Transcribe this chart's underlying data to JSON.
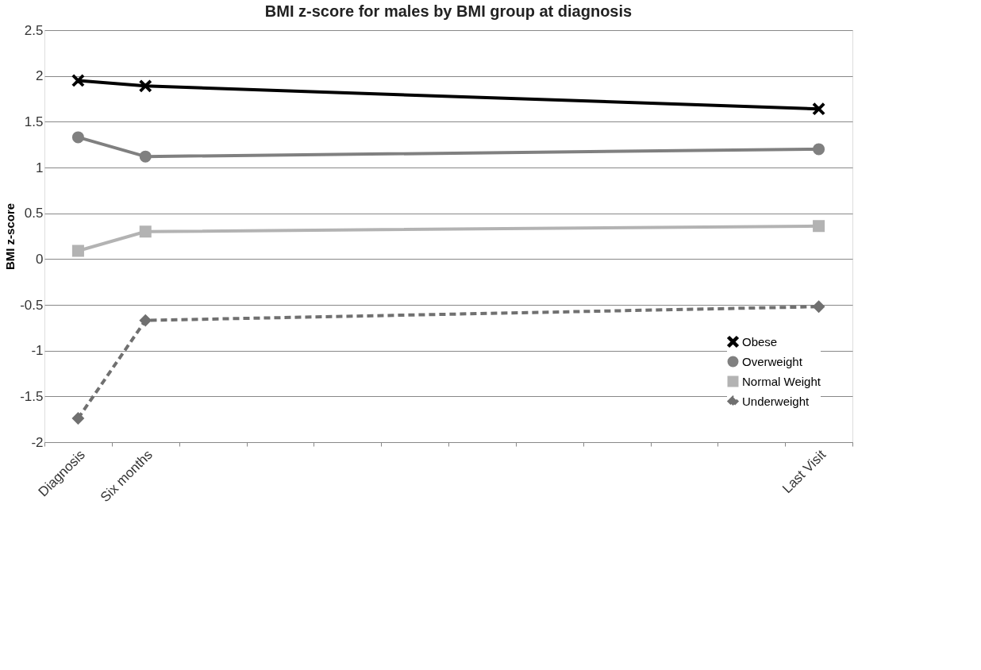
{
  "chart_data": {
    "type": "line",
    "title": "BMI z-score for males by BMI group at diagnosis",
    "ylabel": "BMI z-score",
    "categories": [
      "Diagnosis",
      "Six months",
      null,
      null,
      null,
      null,
      null,
      null,
      null,
      null,
      null,
      "Last Visit"
    ],
    "series": [
      {
        "name": "Obese",
        "color": "#000000",
        "marker": "cross",
        "line_style": "solid",
        "values": [
          1.95,
          1.89,
          null,
          null,
          null,
          null,
          null,
          null,
          null,
          null,
          null,
          1.64
        ]
      },
      {
        "name": "Overweight",
        "color": "#808080",
        "marker": "circle",
        "line_style": "solid",
        "values": [
          1.33,
          1.12,
          null,
          null,
          null,
          null,
          null,
          null,
          null,
          null,
          null,
          1.2
        ]
      },
      {
        "name": "Normal Weight",
        "color": "#b3b3b3",
        "marker": "square",
        "line_style": "solid",
        "values": [
          0.09,
          0.3,
          null,
          null,
          null,
          null,
          null,
          null,
          null,
          null,
          null,
          0.36
        ]
      },
      {
        "name": "Underweight",
        "color": "#707070",
        "marker": "diamond",
        "line_style": "dashed",
        "values": [
          -1.74,
          -0.67,
          null,
          null,
          null,
          null,
          null,
          null,
          null,
          null,
          null,
          -0.52
        ]
      }
    ],
    "ylim": [
      -2,
      2.5
    ],
    "yticks": [
      -2,
      -1.5,
      -1,
      -0.5,
      0,
      0.5,
      1,
      1.5,
      2,
      2.5
    ],
    "grid": "y",
    "legend": "bottom right"
  }
}
